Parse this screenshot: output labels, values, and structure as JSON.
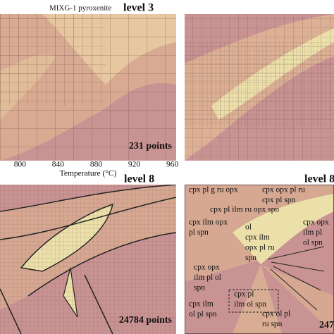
{
  "panels": [
    {
      "caption": "MIXG-1 pyroxenite",
      "title": "level 3",
      "points": "231 points",
      "xlabel": "Temperature (°C)",
      "xlim": [
        779,
        964
      ],
      "xticks": [
        800,
        840,
        880,
        920,
        960
      ]
    },
    {
      "title": "level 8",
      "points": "24784 points"
    },
    {
      "title": "level 8",
      "points": "247",
      "fields": [
        [
          "cpx pl g ru opx"
        ],
        [
          "cpx opx pl ru",
          "cpx pl spn"
        ],
        [
          "cpx pl ilm ru opx spn"
        ],
        [
          "cpx ilm opx",
          "pl spn"
        ],
        [
          "ol",
          "cpx ilm",
          "opx pl ru",
          "spn"
        ],
        [
          "cpx opx",
          "ilm pl",
          "ol spn"
        ],
        [
          "cpx opx",
          "ilm pl ol",
          "spn"
        ],
        [
          "cpx pl",
          "ilm ol spn"
        ],
        [
          "cpx ilm",
          "ol pl spn"
        ],
        [
          "cpx ol pl",
          "ru spn"
        ]
      ]
    }
  ]
}
